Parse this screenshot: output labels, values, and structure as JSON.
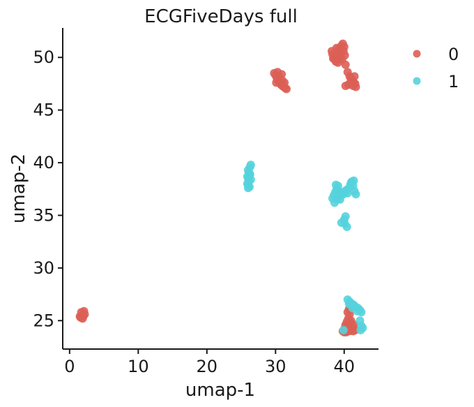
{
  "chart_data": {
    "type": "scatter",
    "title": "ECGFiveDays full",
    "xlabel": "umap-1",
    "ylabel": "umap-2",
    "xlim": [
      -1,
      45
    ],
    "ylim": [
      22.3,
      52.8
    ],
    "xticks": [
      0,
      10,
      20,
      30,
      40
    ],
    "yticks": [
      25,
      30,
      35,
      40,
      45,
      50
    ],
    "grid": false,
    "legend": {
      "position": "top-right"
    },
    "series": [
      {
        "name": "0",
        "color": "#dc5f55",
        "points": [
          [
            1.6,
            25.3
          ],
          [
            1.8,
            25.5
          ],
          [
            2.0,
            25.4
          ],
          [
            1.7,
            25.8
          ],
          [
            2.1,
            25.9
          ],
          [
            1.9,
            25.2
          ],
          [
            2.2,
            25.6
          ],
          [
            1.5,
            25.4
          ],
          [
            29.8,
            48.5
          ],
          [
            30.0,
            48.3
          ],
          [
            30.2,
            48.0
          ],
          [
            30.4,
            47.8
          ],
          [
            30.6,
            47.6
          ],
          [
            30.8,
            47.4
          ],
          [
            31.0,
            47.3
          ],
          [
            31.2,
            47.2
          ],
          [
            31.4,
            47.1
          ],
          [
            31.0,
            47.8
          ],
          [
            30.5,
            48.2
          ],
          [
            31.6,
            47.0
          ],
          [
            30.1,
            47.6
          ],
          [
            30.9,
            48.4
          ],
          [
            31.3,
            47.6
          ],
          [
            30.3,
            48.6
          ],
          [
            38.2,
            50.6
          ],
          [
            38.3,
            50.3
          ],
          [
            38.5,
            50.0
          ],
          [
            38.6,
            49.8
          ],
          [
            38.8,
            49.6
          ],
          [
            39.0,
            50.2
          ],
          [
            39.2,
            50.8
          ],
          [
            39.4,
            50.5
          ],
          [
            39.6,
            51.1
          ],
          [
            39.8,
            51.3
          ],
          [
            40.0,
            51.0
          ],
          [
            39.3,
            49.9
          ],
          [
            39.1,
            49.5
          ],
          [
            38.9,
            50.9
          ],
          [
            39.7,
            49.8
          ],
          [
            40.1,
            50.2
          ],
          [
            38.4,
            49.9
          ],
          [
            39.5,
            50.0
          ],
          [
            39.9,
            50.6
          ],
          [
            40.2,
            49.3
          ],
          [
            40.5,
            48.6
          ],
          [
            40.8,
            48.2
          ],
          [
            41.0,
            48.0
          ],
          [
            41.2,
            47.8
          ],
          [
            41.4,
            47.6
          ],
          [
            41.6,
            47.5
          ],
          [
            40.9,
            47.6
          ],
          [
            41.3,
            47.3
          ],
          [
            41.7,
            47.2
          ],
          [
            40.6,
            47.4
          ],
          [
            40.2,
            47.3
          ],
          [
            41.5,
            48.2
          ],
          [
            39.8,
            24.0
          ],
          [
            40.1,
            24.3
          ],
          [
            40.3,
            23.9
          ],
          [
            40.5,
            24.5
          ],
          [
            40.7,
            24.0
          ],
          [
            40.9,
            24.8
          ],
          [
            41.1,
            24.2
          ],
          [
            41.3,
            24.0
          ],
          [
            41.5,
            24.6
          ],
          [
            40.6,
            25.2
          ],
          [
            40.8,
            25.6
          ],
          [
            40.4,
            24.9
          ],
          [
            41.0,
            25.0
          ],
          [
            41.2,
            24.4
          ],
          [
            40.2,
            24.6
          ],
          [
            41.6,
            24.1
          ],
          [
            40.7,
            26.1
          ],
          [
            40.5,
            25.8
          ],
          [
            40.9,
            24.2
          ],
          [
            40.0,
            23.9
          ]
        ]
      },
      {
        "name": "1",
        "color": "#55d3dd",
        "points": [
          [
            26.0,
            37.6
          ],
          [
            26.0,
            37.9
          ],
          [
            26.1,
            38.2
          ],
          [
            26.0,
            38.5
          ],
          [
            26.2,
            38.8
          ],
          [
            26.1,
            39.1
          ],
          [
            26.0,
            39.3
          ],
          [
            26.3,
            39.6
          ],
          [
            26.4,
            39.8
          ],
          [
            25.9,
            38.0
          ],
          [
            26.4,
            38.4
          ],
          [
            26.2,
            37.7
          ],
          [
            26.3,
            38.9
          ],
          [
            25.9,
            38.7
          ],
          [
            38.3,
            36.6
          ],
          [
            38.5,
            36.9
          ],
          [
            38.7,
            37.2
          ],
          [
            38.9,
            37.5
          ],
          [
            39.1,
            37.8
          ],
          [
            39.3,
            37.3
          ],
          [
            39.5,
            36.9
          ],
          [
            39.7,
            37.1
          ],
          [
            39.9,
            37.0
          ],
          [
            40.1,
            37.2
          ],
          [
            40.3,
            37.4
          ],
          [
            40.5,
            37.1
          ],
          [
            40.7,
            37.6
          ],
          [
            40.9,
            37.9
          ],
          [
            41.1,
            38.2
          ],
          [
            41.3,
            37.8
          ],
          [
            41.5,
            37.3
          ],
          [
            41.7,
            37.0
          ],
          [
            41.4,
            38.3
          ],
          [
            41.0,
            38.1
          ],
          [
            39.0,
            36.5
          ],
          [
            38.6,
            36.2
          ],
          [
            38.8,
            37.9
          ],
          [
            39.4,
            36.5
          ],
          [
            39.6,
            34.3
          ],
          [
            40.0,
            34.6
          ],
          [
            40.2,
            34.9
          ],
          [
            40.4,
            33.9
          ],
          [
            40.1,
            34.2
          ],
          [
            40.5,
            27.0
          ],
          [
            40.8,
            26.8
          ],
          [
            41.1,
            26.6
          ],
          [
            41.4,
            26.5
          ],
          [
            41.7,
            26.3
          ],
          [
            42.0,
            26.2
          ],
          [
            42.3,
            26.0
          ],
          [
            42.5,
            25.8
          ],
          [
            42.3,
            25.0
          ],
          [
            42.5,
            24.5
          ],
          [
            42.4,
            24.1
          ],
          [
            42.7,
            24.3
          ],
          [
            41.9,
            25.9
          ],
          [
            40.7,
            26.6
          ],
          [
            41.2,
            26.2
          ],
          [
            39.9,
            24.1
          ]
        ]
      }
    ]
  }
}
